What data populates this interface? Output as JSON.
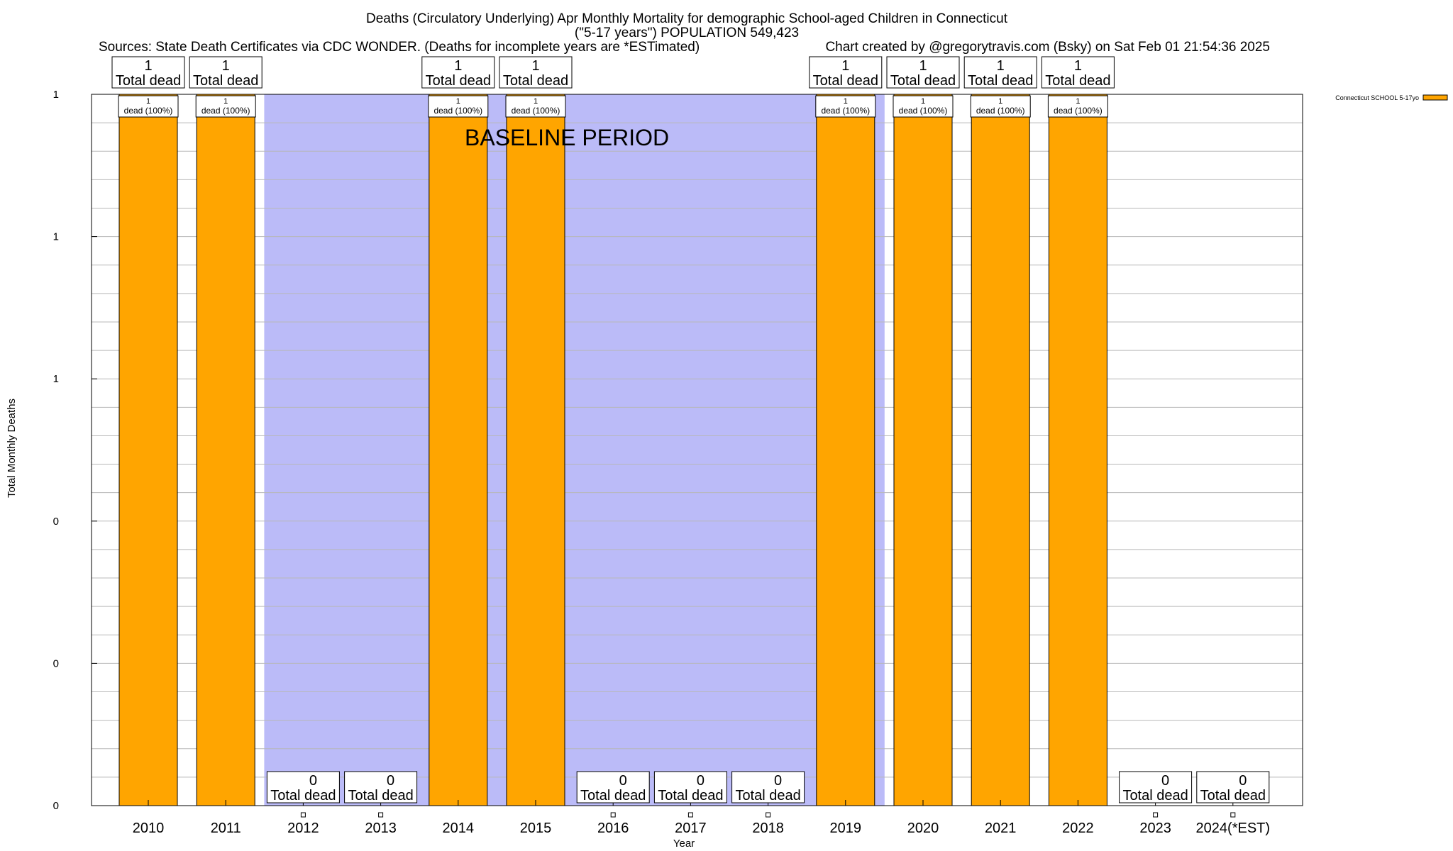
{
  "chart_data": {
    "type": "bar",
    "title": "Deaths (Circulatory Underlying) Apr Monthly Mortality for demographic School-aged Children in Connecticut",
    "subtitle": "(\"5-17 years\") POPULATION 549,423",
    "sources": "Sources: State Death Certificates via CDC WONDER. (Deaths for incomplete years are *ESTimated)",
    "credit": "Chart created by @gregorytravis.com (Bsky) on Sat Feb 01 21:54:36 2025",
    "xlabel": "Year",
    "ylabel": "Total Monthly Deaths",
    "ylim": [
      0,
      1
    ],
    "ytick_values": [
      0,
      0.2,
      0.4,
      0.6,
      0.8,
      1.0
    ],
    "ytick_labels": [
      "0",
      "0",
      "0",
      "1",
      "1",
      "1"
    ],
    "grid": true,
    "legend_position": "top-right",
    "categories": [
      "2010",
      "2011",
      "2012",
      "2013",
      "2014",
      "2015",
      "2016",
      "2017",
      "2018",
      "2019",
      "2020",
      "2021",
      "2022",
      "2023",
      "2024(*EST)"
    ],
    "series": [
      {
        "name": "Connecticut SCHOOL 5-17yo",
        "color": "#ffa500",
        "values": [
          1,
          1,
          0,
          0,
          1,
          1,
          0,
          0,
          0,
          1,
          1,
          1,
          1,
          0,
          0
        ]
      }
    ],
    "total_labels": [
      "1",
      "1",
      "0",
      "0",
      "1",
      "1",
      "0",
      "0",
      "0",
      "1",
      "1",
      "1",
      "1",
      "0",
      "0"
    ],
    "total_label_text": "Total dead",
    "inner_labels": [
      "1",
      "1",
      "",
      "",
      "1",
      "1",
      "",
      "",
      "",
      "1",
      "1",
      "1",
      "1",
      "",
      ""
    ],
    "inner_label_text": "dead (100%)",
    "baseline_period": {
      "label": "BASELINE PERIOD",
      "start_category": "2012",
      "end_category": "2019",
      "color": "#bbbbf8"
    }
  }
}
